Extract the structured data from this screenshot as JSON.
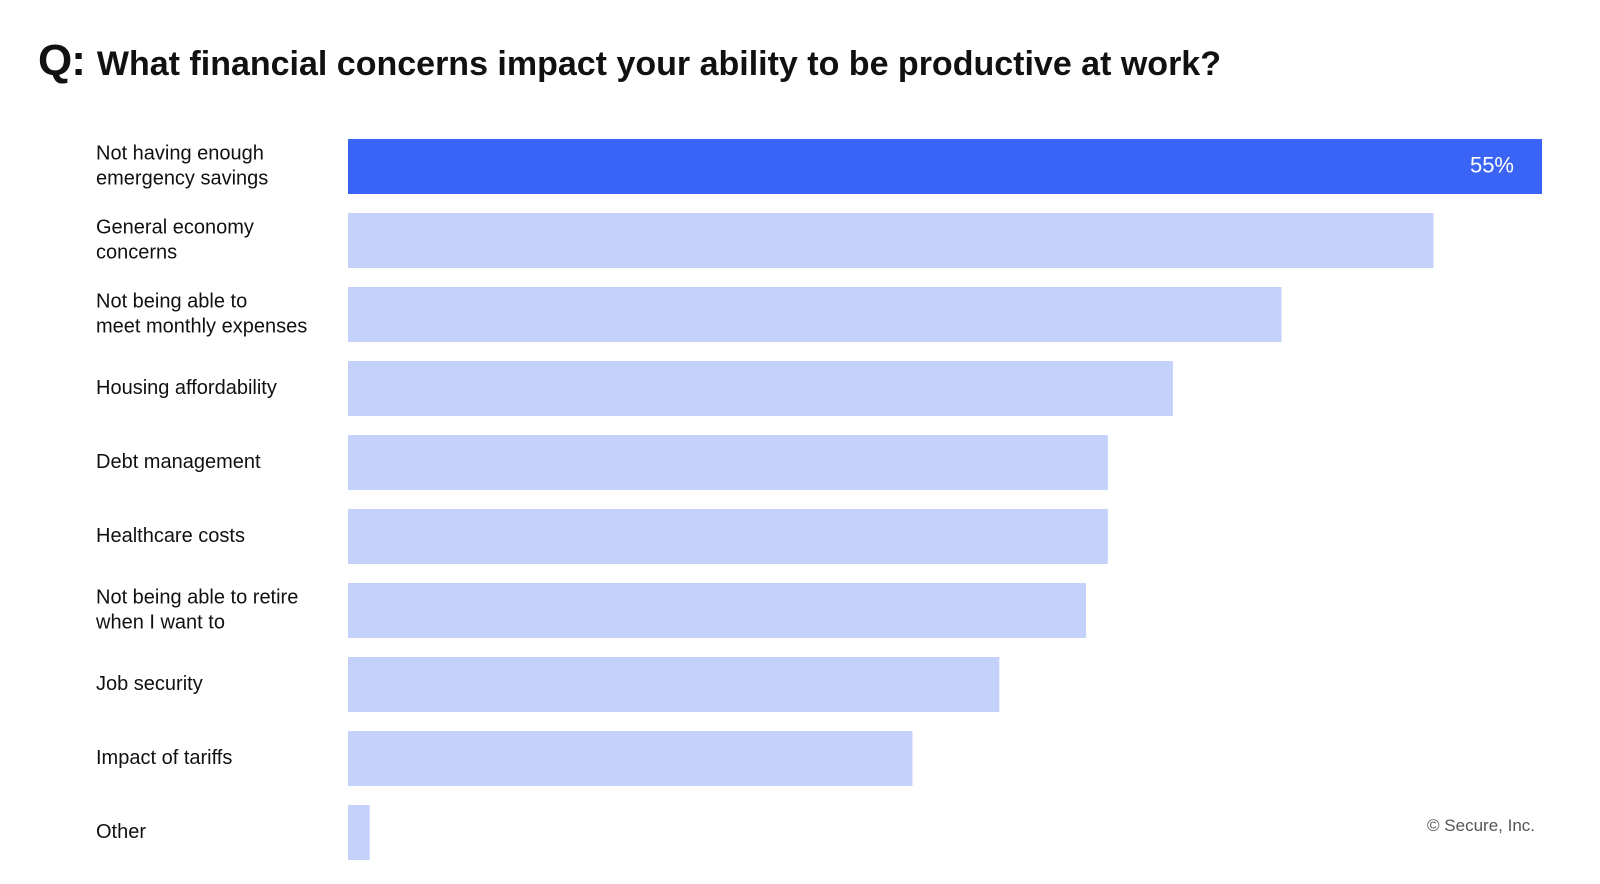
{
  "header": {
    "q_label": "Q:",
    "title": "What financial concerns impact your ability to be productive at work?"
  },
  "chart_data": {
    "type": "bar",
    "orientation": "horizontal",
    "title": "What financial concerns impact your ability to be productive at work?",
    "xlabel": "",
    "ylabel": "",
    "xlim": [
      0,
      55
    ],
    "grid": false,
    "legend": "none",
    "colors": {
      "highlight": "#3a64f5",
      "default": "#c4d1fb"
    },
    "categories": [
      [
        "Not having enough",
        "emergency savings"
      ],
      [
        "General economy",
        "concerns"
      ],
      [
        "Not being able to",
        "meet monthly expenses"
      ],
      [
        "Housing affordability"
      ],
      [
        "Debt management"
      ],
      [
        "Healthcare costs"
      ],
      [
        "Not being able to retire",
        "when I want to"
      ],
      [
        "Job security"
      ],
      [
        "Impact of tariffs"
      ],
      [
        "Other"
      ]
    ],
    "values": [
      55,
      50,
      43,
      38,
      35,
      35,
      34,
      30,
      26,
      1
    ],
    "highlight_index": 0,
    "data_labels": [
      "55%",
      "",
      "",
      "",
      "",
      "",
      "",
      "",
      "",
      ""
    ]
  },
  "footer": {
    "copyright": "© Secure, Inc."
  }
}
